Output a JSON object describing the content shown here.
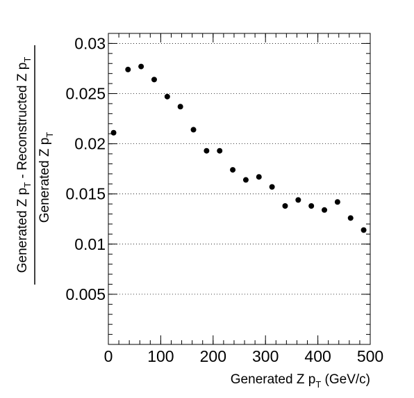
{
  "chart_data": {
    "type": "scatter",
    "title": "",
    "xlabel": {
      "main": "Generated Z p",
      "sub": "T",
      "suffix": " (GeV/c)"
    },
    "ylabel": {
      "numerator": {
        "a": "Generated Z p",
        "a_sub": "T",
        "b": " - Reconstructed Z p",
        "b_sub": "T"
      },
      "denominator": {
        "a": "Generated Z p",
        "a_sub": "T"
      }
    },
    "xlim": [
      0,
      500
    ],
    "ylim": [
      0,
      0.031
    ],
    "x_ticks": [
      0,
      100,
      200,
      300,
      400,
      500
    ],
    "x_tick_labels": [
      "0",
      "100",
      "200",
      "300",
      "400",
      "500"
    ],
    "y_ticks": [
      0.005,
      0.01,
      0.015,
      0.02,
      0.025,
      0.03
    ],
    "y_tick_labels": [
      "0.005",
      "0.01",
      "0.015",
      "0.02",
      "0.025",
      "0.03"
    ],
    "grid": {
      "x": false,
      "y": true,
      "style": "dotted"
    },
    "marker_color": "#000000",
    "points": [
      {
        "x": 10,
        "y": 0.0211
      },
      {
        "x": 37.5,
        "y": 0.0274
      },
      {
        "x": 62.5,
        "y": 0.0277
      },
      {
        "x": 87.5,
        "y": 0.0264
      },
      {
        "x": 112.5,
        "y": 0.0247
      },
      {
        "x": 137.5,
        "y": 0.0237
      },
      {
        "x": 162.5,
        "y": 0.0214
      },
      {
        "x": 187.5,
        "y": 0.0193
      },
      {
        "x": 212.5,
        "y": 0.0193
      },
      {
        "x": 237.5,
        "y": 0.0174
      },
      {
        "x": 262.5,
        "y": 0.0164
      },
      {
        "x": 287.5,
        "y": 0.0167
      },
      {
        "x": 312.5,
        "y": 0.0157
      },
      {
        "x": 337.5,
        "y": 0.0138
      },
      {
        "x": 362.5,
        "y": 0.0144
      },
      {
        "x": 387.5,
        "y": 0.0138
      },
      {
        "x": 412.5,
        "y": 0.0134
      },
      {
        "x": 437.5,
        "y": 0.0142
      },
      {
        "x": 462.5,
        "y": 0.0126
      },
      {
        "x": 487.5,
        "y": 0.0114
      }
    ]
  }
}
